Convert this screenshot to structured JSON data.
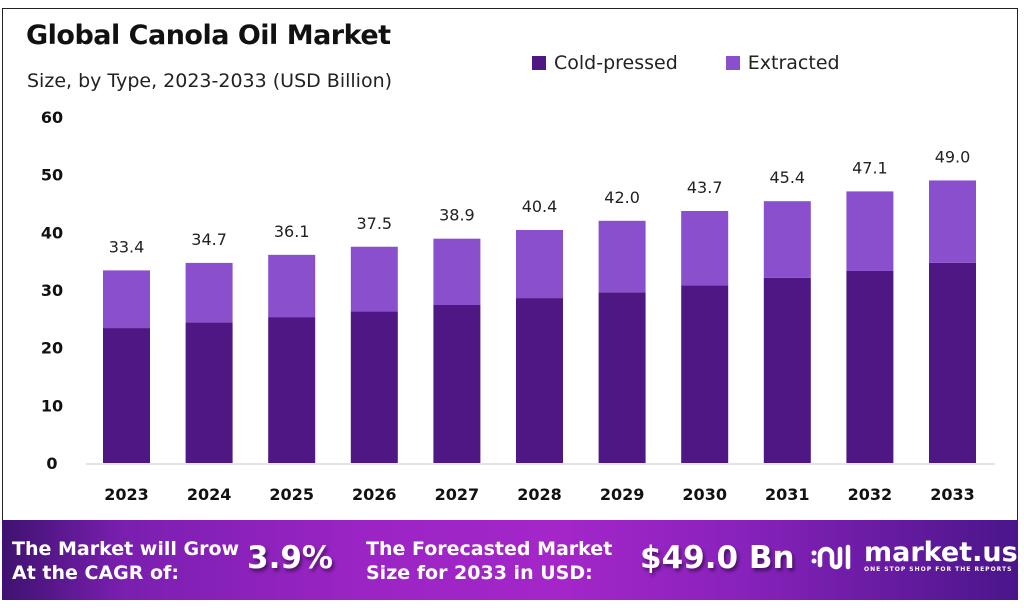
{
  "chart_data": {
    "type": "bar",
    "stacked": true,
    "title": "Global Canola Oil Market",
    "subtitle": "Size, by Type, 2023-2033 (USD Billion)",
    "xlabel": "",
    "ylabel": "",
    "ylim": [
      0,
      60
    ],
    "yticks": [
      0,
      10,
      20,
      30,
      40,
      50,
      60
    ],
    "grid": false,
    "legend_position": "top-right",
    "categories": [
      "2023",
      "2024",
      "2025",
      "2026",
      "2027",
      "2028",
      "2029",
      "2030",
      "2031",
      "2032",
      "2033"
    ],
    "series": [
      {
        "name": "Cold-pressed",
        "color": "#4f1784",
        "values": [
          23.4,
          24.4,
          25.3,
          26.3,
          27.4,
          28.6,
          29.6,
          30.8,
          32.1,
          33.3,
          34.7
        ]
      },
      {
        "name": "Extracted",
        "color": "#8a4fcc",
        "values": [
          10.0,
          10.3,
          10.8,
          11.2,
          11.5,
          11.8,
          12.4,
          12.9,
          13.3,
          13.8,
          14.3
        ]
      }
    ],
    "totals": [
      33.4,
      34.7,
      36.1,
      37.5,
      38.9,
      40.4,
      42.0,
      43.7,
      45.4,
      47.1,
      49.0
    ],
    "total_labels": [
      "33.4",
      "34.7",
      "36.1",
      "37.5",
      "38.9",
      "40.4",
      "42.0",
      "43.7",
      "45.4",
      "47.1",
      "49.0"
    ]
  },
  "banner": {
    "cagr_label_line1": "The Market will Grow",
    "cagr_label_line2": "At the CAGR of:",
    "cagr_value": "3.9%",
    "forecast_label_line1": "The Forecasted Market",
    "forecast_label_line2": "Size for 2033 in USD:",
    "forecast_value": "$49.0 Bn",
    "brand_name": "market.us",
    "brand_tagline": "ONE STOP SHOP FOR THE REPORTS"
  }
}
